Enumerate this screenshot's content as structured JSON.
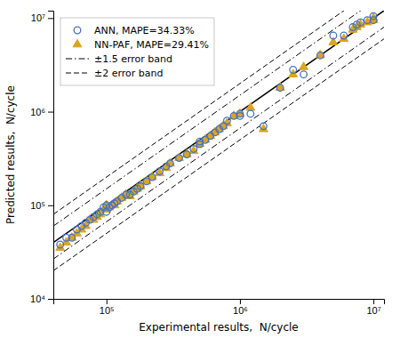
{
  "chart_data": {
    "type": "scatter",
    "xlabel": "Experimental results,  N/cycle",
    "ylabel": "Predicted results,  N/cycle",
    "log": true,
    "grid": false,
    "legend": "upper left",
    "xlim": [
      40000.0,
      12000000.0
    ],
    "ylim": [
      10000.0,
      12000000.0
    ],
    "xticks": [
      {
        "value": 100000.0,
        "label": "10⁵"
      },
      {
        "value": 1000000.0,
        "label": "10⁶"
      },
      {
        "value": 10000000.0,
        "label": "10⁷"
      }
    ],
    "yticks": [
      {
        "value": 10000.0,
        "label": "10⁴"
      },
      {
        "value": 100000.0,
        "label": "10⁵"
      },
      {
        "value": 1000000.0,
        "label": "10⁶"
      },
      {
        "value": 10000000.0,
        "label": "10⁷"
      }
    ],
    "series": [
      {
        "name": "ANN, MAPE=34.33%",
        "type": "scatter",
        "marker": "open-circle",
        "color": "#4472C4",
        "x": [
          45000.0,
          50000.0,
          55000.0,
          60000.0,
          65000.0,
          70000.0,
          75000.0,
          80000.0,
          85000.0,
          90000.0,
          95000.0,
          100000.0,
          100000.0,
          105000.0,
          110000.0,
          115000.0,
          120000.0,
          130000.0,
          140000.0,
          150000.0,
          160000.0,
          170000.0,
          180000.0,
          200000.0,
          220000.0,
          250000.0,
          280000.0,
          300000.0,
          350000.0,
          400000.0,
          450000.0,
          500000.0,
          500000.0,
          550000.0,
          600000.0,
          650000.0,
          700000.0,
          750000.0,
          800000.0,
          900000.0,
          1000000.0,
          1000000.0,
          1200000.0,
          1500000.0,
          2000000.0,
          2500000.0,
          3000000.0,
          4000000.0,
          5000000.0,
          6000000.0,
          7000000.0,
          7500000.0,
          8000000.0,
          9000000.0,
          10000000.0,
          10000000.0
        ],
        "values": [
          38000.0,
          45000.0,
          45000.0,
          55000.0,
          60000.0,
          65000.0,
          70000.0,
          75000.0,
          80000.0,
          85000.0,
          95000.0,
          85000.0,
          100000.0,
          95000.0,
          100000.0,
          105000.0,
          110000.0,
          120000.0,
          130000.0,
          130000.0,
          140000.0,
          150000.0,
          160000.0,
          180000.0,
          200000.0,
          230000.0,
          260000.0,
          280000.0,
          320000.0,
          350000.0,
          400000.0,
          450000.0,
          480000.0,
          500000.0,
          550000.0,
          600000.0,
          650000.0,
          700000.0,
          800000.0,
          900000.0,
          900000.0,
          950000.0,
          950000.0,
          700000.0,
          1800000.0,
          2800000.0,
          2500000.0,
          4000000.0,
          6500000.0,
          6500000.0,
          8000000.0,
          8500000.0,
          9000000.0,
          9500000.0,
          9500000.0,
          10500000.0
        ]
      },
      {
        "name": "NN-PAF, MAPE=29.41%",
        "type": "scatter",
        "marker": "triangle",
        "color": "#DAA520",
        "x": [
          45000.0,
          50000.0,
          55000.0,
          60000.0,
          65000.0,
          70000.0,
          75000.0,
          80000.0,
          85000.0,
          90000.0,
          95000.0,
          100000.0,
          100000.0,
          105000.0,
          110000.0,
          115000.0,
          120000.0,
          130000.0,
          140000.0,
          150000.0,
          160000.0,
          170000.0,
          180000.0,
          200000.0,
          220000.0,
          250000.0,
          280000.0,
          300000.0,
          350000.0,
          400000.0,
          450000.0,
          500000.0,
          550000.0,
          600000.0,
          650000.0,
          700000.0,
          750000.0,
          800000.0,
          900000.0,
          1000000.0,
          1200000.0,
          1500000.0,
          2000000.0,
          2500000.0,
          3000000.0,
          4000000.0,
          5000000.0,
          6000000.0,
          7000000.0,
          7500000.0,
          8000000.0,
          9000000.0,
          10000000.0,
          10000000.0
        ],
        "values": [
          35000.0,
          40000.0,
          45000.0,
          50000.0,
          55000.0,
          60000.0,
          70000.0,
          70000.0,
          75000.0,
          80000.0,
          90000.0,
          90000.0,
          100000.0,
          95000.0,
          100000.0,
          100000.0,
          110000.0,
          120000.0,
          130000.0,
          125000.0,
          140000.0,
          150000.0,
          160000.0,
          180000.0,
          200000.0,
          220000.0,
          250000.0,
          280000.0,
          320000.0,
          350000.0,
          380000.0,
          450000.0,
          500000.0,
          550000.0,
          600000.0,
          650000.0,
          700000.0,
          750000.0,
          900000.0,
          950000.0,
          1100000.0,
          650000.0,
          1800000.0,
          2500000.0,
          3000000.0,
          4000000.0,
          5500000.0,
          6000000.0,
          7500000.0,
          8000000.0,
          8500000.0,
          9000000.0,
          9500000.0,
          10000000.0
        ]
      },
      {
        "name": "±1.5 error band",
        "type": "line",
        "line_style": "dashdot",
        "color": "#000000",
        "factor": 1.5
      },
      {
        "name": "±2 error band",
        "type": "line",
        "line_style": "dashed",
        "color": "#000000",
        "factor": 2.0
      },
      {
        "type": "line",
        "line_style": "solid",
        "color": "#000000",
        "factor": 1
      }
    ]
  }
}
